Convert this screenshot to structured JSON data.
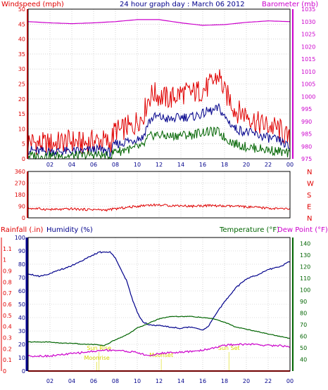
{
  "header": {
    "left": "Windspeed (mph)",
    "title": "24 hour graph day : March 06 2012",
    "right": "Barometer (mb)"
  },
  "colors": {
    "red": "#e00000",
    "blue": "#00008b",
    "magenta": "#cc00cc",
    "green": "#006400",
    "dark_blue": "#00008b",
    "yellow": "#d8d800",
    "grid": "#bbbbbb",
    "frame": "#000000"
  },
  "chart_data": [
    {
      "type": "line",
      "name": "wind-barometer",
      "ylim_left": [
        0,
        50
      ],
      "ylim_right": [
        975,
        1035
      ],
      "left_ticks": [
        "0",
        "5",
        "10",
        "15",
        "20",
        "25",
        "30",
        "35",
        "40",
        "45",
        "50"
      ],
      "right_ticks": [
        "975",
        "980",
        "985",
        "990",
        "995",
        "1000",
        "1005",
        "1010",
        "1015",
        "1020",
        "1025",
        "1030",
        "1035"
      ],
      "x_ticks": [
        "02",
        "04",
        "06",
        "08",
        "10",
        "12",
        "14",
        "16",
        "18",
        "20",
        "22",
        "00"
      ],
      "xlim": [
        0,
        24
      ],
      "series": [
        {
          "key": "gust",
          "color": "#e00000",
          "axis": "left",
          "x": [
            0,
            1,
            2,
            3,
            4,
            5,
            6,
            7,
            7.5,
            8,
            8.5,
            9,
            9.5,
            10,
            10.5,
            11,
            11.5,
            12,
            13,
            14,
            15,
            16,
            16.5,
            17,
            17.5,
            18,
            18.5,
            19,
            20,
            21,
            22,
            23,
            23.5,
            24
          ],
          "values": [
            6,
            5,
            5,
            5.5,
            6,
            5,
            6,
            6,
            5,
            10,
            9,
            11,
            10,
            13,
            14,
            20,
            22,
            21,
            20,
            22,
            22,
            23,
            24,
            26,
            28,
            22,
            20,
            16,
            15,
            12,
            11,
            10,
            8,
            6
          ]
        },
        {
          "key": "speed",
          "color": "#00008b",
          "axis": "left",
          "x": [
            0,
            1,
            2,
            3,
            4,
            5,
            6,
            7,
            7.5,
            8,
            8.5,
            9,
            9.5,
            10,
            10.5,
            11,
            11.5,
            12,
            13,
            14,
            15,
            16,
            16.5,
            17,
            17.5,
            18,
            18.5,
            19,
            20,
            21,
            22,
            23,
            23.5,
            24
          ],
          "values": [
            3,
            2.5,
            2.5,
            2.5,
            2.5,
            2.5,
            3,
            3,
            2,
            5,
            5,
            6,
            6,
            7,
            7,
            12,
            14,
            14,
            13,
            14,
            14,
            15,
            16,
            16,
            17,
            14,
            12,
            10,
            9,
            8,
            7,
            6,
            5,
            3.5
          ]
        },
        {
          "key": "minimum",
          "color": "#006400",
          "axis": "left",
          "x": [
            0,
            1,
            2,
            3,
            4,
            5,
            6,
            7,
            7.5,
            8,
            8.5,
            9,
            9.5,
            10,
            10.5,
            11,
            11.5,
            12,
            13,
            14,
            15,
            16,
            16.5,
            17,
            17.5,
            18,
            18.5,
            19,
            20,
            21,
            22,
            23,
            23.5,
            24
          ],
          "values": [
            1,
            1,
            1,
            1,
            1,
            1,
            1.5,
            1,
            0.5,
            3,
            2.5,
            3.5,
            3,
            4,
            4,
            7,
            8,
            8,
            7.5,
            8,
            8,
            9,
            9,
            9,
            9,
            7,
            6,
            5,
            4,
            3.5,
            3,
            2.5,
            2,
            1.5
          ]
        },
        {
          "key": "barometer",
          "color": "#cc00cc",
          "axis": "right",
          "x": [
            0,
            2,
            4,
            6,
            8,
            10,
            12,
            14,
            16,
            18,
            20,
            22,
            24
          ],
          "values": [
            1030,
            1029.5,
            1029.2,
            1029.5,
            1030,
            1030.8,
            1030.8,
            1029.5,
            1028.5,
            1028.8,
            1029.7,
            1030.3,
            1030
          ]
        }
      ]
    },
    {
      "type": "line",
      "name": "wind-direction",
      "ylim": [
        0,
        360
      ],
      "left_ticks": [
        "0",
        "90",
        "180",
        "270",
        "360"
      ],
      "right_ticks": [
        "N",
        "E",
        "S",
        "W",
        "N"
      ],
      "x_ticks": [],
      "xlim": [
        0,
        24
      ],
      "series": [
        {
          "key": "direction",
          "color": "#e00000",
          "x": [
            0,
            1,
            2,
            3,
            4,
            5,
            6,
            7,
            7.5,
            8,
            9,
            10,
            11,
            12,
            13,
            14,
            15,
            16,
            17,
            18,
            19,
            20,
            21,
            22,
            23,
            24
          ],
          "values": [
            75,
            70,
            65,
            65,
            70,
            65,
            65,
            60,
            65,
            70,
            80,
            90,
            100,
            100,
            95,
            95,
            90,
            95,
            95,
            90,
            90,
            85,
            80,
            75,
            70,
            70
          ]
        }
      ]
    },
    {
      "type": "line",
      "name": "rain-humidity-temp",
      "labels": {
        "rainfall": "Rainfall (.in)",
        "humidity": "Humidity (%)",
        "temperature": "Temperature (°F)",
        "dewpoint": "Dew Point (°F)"
      },
      "ylim_rain": [
        0,
        1.2
      ],
      "ylim_humidity": [
        0,
        100
      ],
      "ylim_temp": [
        30,
        145
      ],
      "rain_ticks": [
        "0",
        "0.1",
        "0.2",
        "0.3",
        "0.4",
        "0.5",
        "0.6",
        "0.7",
        "0.8",
        "0.9",
        "1",
        "1.1"
      ],
      "humidity_ticks": [
        "0",
        "10",
        "20",
        "30",
        "40",
        "50",
        "60",
        "70",
        "80",
        "90",
        "100"
      ],
      "temp_ticks": [
        "40",
        "50",
        "60",
        "70",
        "80",
        "90",
        "100",
        "110",
        "120",
        "130",
        "140"
      ],
      "x_ticks": [
        "02",
        "04",
        "06",
        "08",
        "10",
        "12",
        "14",
        "16",
        "18",
        "20",
        "22",
        "00"
      ],
      "xlim": [
        0,
        24
      ],
      "annotations": [
        {
          "text": "Sun Rise",
          "x": 6.5
        },
        {
          "text": "Moonrise",
          "x": 6.3
        },
        {
          "text": "Moonset",
          "x": 12.2
        },
        {
          "text": "Sun Set",
          "x": 18.4
        }
      ],
      "series": [
        {
          "key": "humidity",
          "color": "#00008b",
          "axis": "humidity",
          "x": [
            0,
            0.5,
            1,
            2,
            3,
            4,
            5,
            6,
            6.5,
            7,
            7.5,
            8,
            8.5,
            9,
            9.5,
            10,
            10.5,
            11,
            12,
            13,
            14,
            15,
            16,
            16.5,
            17,
            18,
            19,
            20,
            21,
            22,
            23,
            24
          ],
          "values": [
            73,
            72,
            71,
            73,
            76,
            79,
            83,
            87,
            89,
            89,
            89,
            85,
            76,
            68,
            55,
            44,
            37,
            35,
            34,
            33,
            32,
            33,
            31,
            33,
            40,
            52,
            62,
            69,
            72,
            76,
            78,
            82
          ]
        },
        {
          "key": "temperature",
          "color": "#006400",
          "axis": "temp",
          "x": [
            0,
            1,
            2,
            3,
            4,
            5,
            6,
            7,
            8,
            9,
            10,
            11,
            12,
            13,
            14,
            15,
            16,
            17,
            18,
            19,
            20,
            21,
            22,
            23,
            24
          ],
          "values": [
            55,
            55,
            55,
            54,
            54,
            53,
            53,
            52,
            57,
            61,
            67,
            71,
            75,
            77,
            77,
            77,
            76,
            75,
            72,
            68,
            66,
            64,
            62,
            60,
            58
          ]
        },
        {
          "key": "dewpoint",
          "color": "#cc00cc",
          "axis": "temp",
          "x": [
            0,
            1,
            2,
            3,
            4,
            5,
            6,
            7,
            8,
            9,
            10,
            11,
            12,
            13,
            14,
            15,
            16,
            17,
            18,
            19,
            20,
            21,
            22,
            23,
            24
          ],
          "values": [
            43,
            43,
            43,
            44,
            45,
            46,
            47,
            48,
            48,
            47,
            46,
            43,
            45,
            46,
            46,
            47,
            48,
            50,
            52,
            53,
            53,
            53,
            52,
            52,
            51
          ]
        },
        {
          "key": "rainfall",
          "color": "#e00000",
          "axis": "rain",
          "x": [
            0,
            24
          ],
          "values": [
            0,
            0
          ]
        }
      ]
    }
  ]
}
